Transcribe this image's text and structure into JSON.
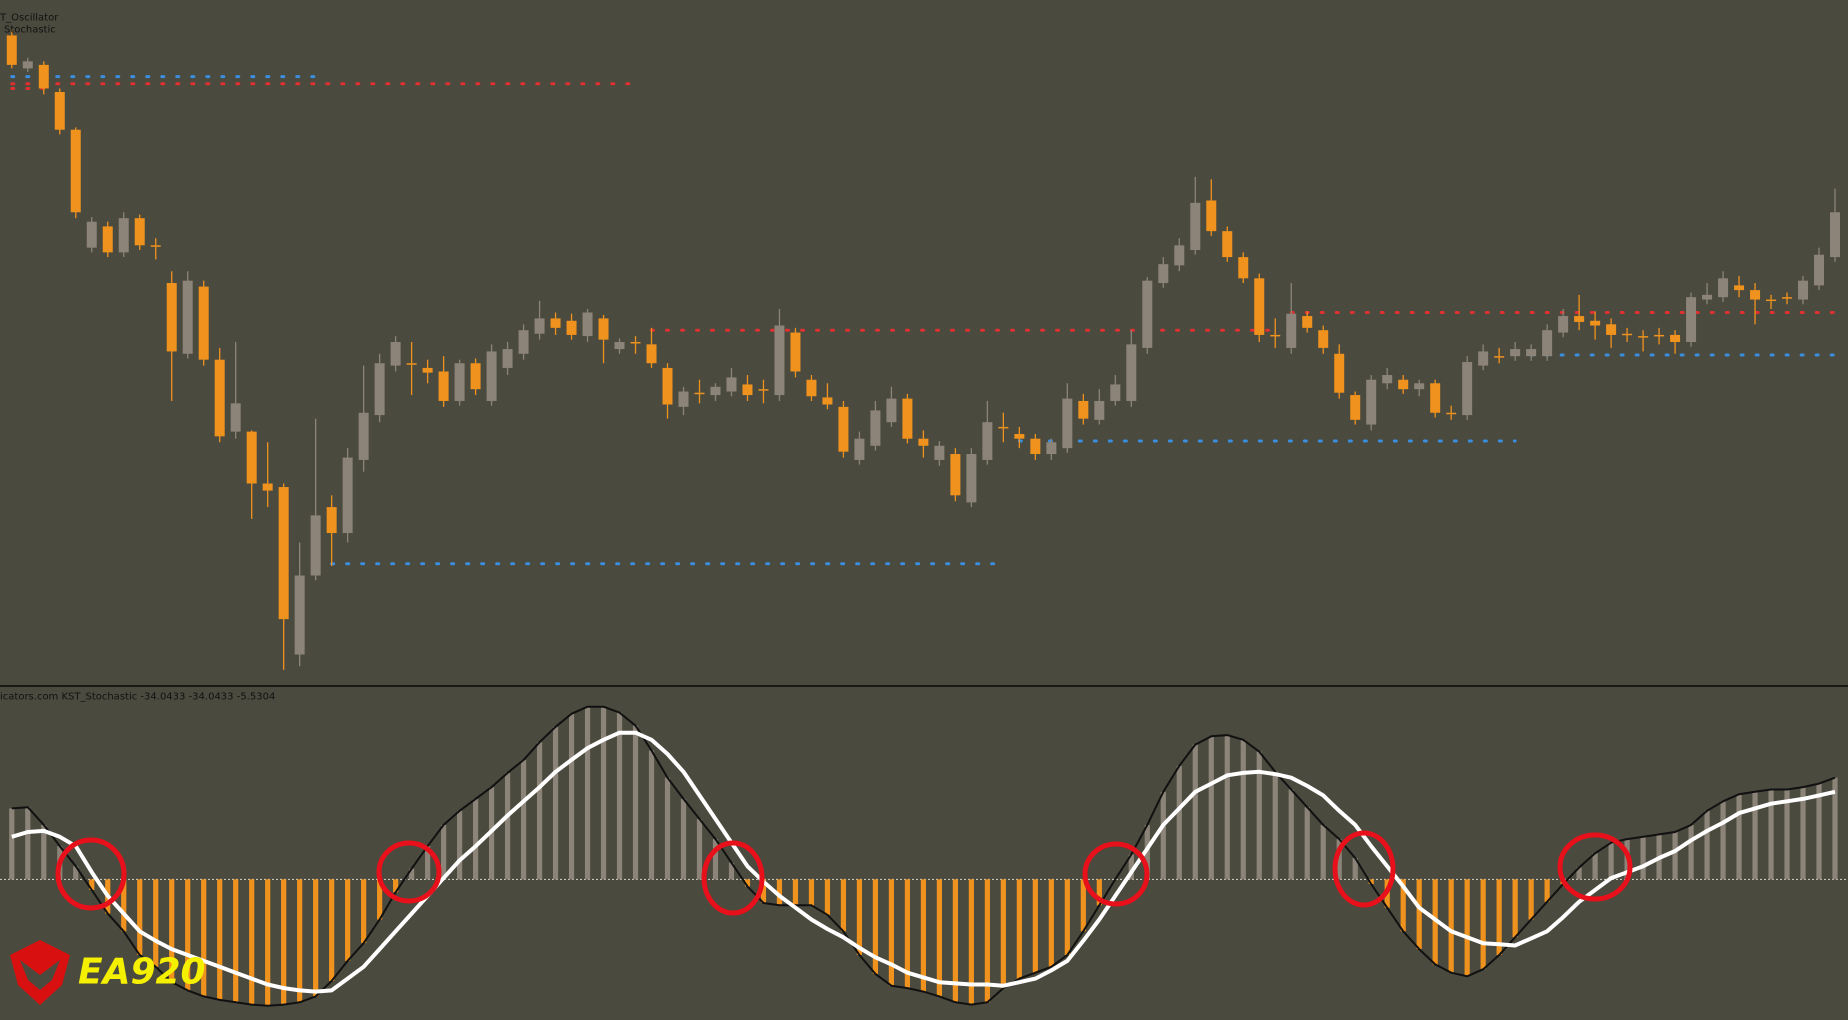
{
  "chart_data": [
    {
      "type": "candlestick",
      "labels": [
        "T_Oscillator",
        "Stochastic"
      ],
      "ylim": [
        0,
        580
      ],
      "up_color": "#8c8478",
      "down_color": "#f0921e",
      "open": [
        550,
        522,
        525,
        502,
        470,
        370,
        388,
        366,
        395,
        372,
        340,
        280,
        337,
        275,
        214,
        214,
        170,
        167,
        25,
        92,
        150,
        128,
        190,
        228,
        270,
        272,
        268,
        265,
        240,
        272,
        240,
        268,
        280,
        297,
        310,
        308,
        295,
        310,
        284,
        290,
        288,
        268,
        235,
        247,
        245,
        248,
        254,
        250,
        245,
        298,
        258,
        243,
        235,
        190,
        202,
        222,
        242,
        208,
        190,
        195,
        154,
        190,
        218,
        212,
        208,
        195,
        200,
        240,
        224,
        240,
        240,
        285,
        340,
        355,
        368,
        410,
        384,
        362,
        344,
        296,
        285,
        312,
        300,
        280,
        245,
        220,
        255,
        258,
        250,
        255,
        230,
        228,
        270,
        278,
        278,
        278,
        278,
        298,
        312,
        308,
        305,
        297,
        295,
        296,
        296,
        290,
        326,
        328,
        338,
        334,
        326,
        328,
        326,
        338,
        362
      ],
      "high": [
        555,
        531,
        528,
        505,
        472,
        396,
        392,
        400,
        398,
        378,
        350,
        350,
        342,
        285,
        290,
        215,
        205,
        170,
        120,
        225,
        160,
        200,
        270,
        280,
        295,
        290,
        275,
        278,
        275,
        276,
        288,
        290,
        305,
        325,
        315,
        314,
        318,
        313,
        293,
        295,
        302,
        272,
        252,
        258,
        255,
        268,
        262,
        258,
        318,
        302,
        262,
        255,
        240,
        214,
        240,
        252,
        246,
        215,
        206,
        200,
        200,
        240,
        230,
        218,
        212,
        208,
        255,
        246,
        250,
        262,
        300,
        345,
        362,
        378,
        430,
        428,
        388,
        366,
        348,
        310,
        340,
        316,
        304,
        288,
        248,
        262,
        268,
        262,
        258,
        258,
        236,
        278,
        288,
        285,
        290,
        288,
        305,
        318,
        330,
        316,
        310,
        302,
        300,
        302,
        300,
        332,
        340,
        350,
        346,
        340,
        330,
        332,
        346,
        370,
        420
      ],
      "low": [
        522,
        519,
        500,
        466,
        395,
        366,
        362,
        362,
        368,
        360,
        240,
        276,
        270,
        205,
        208,
        140,
        150,
        12,
        15,
        88,
        100,
        120,
        180,
        222,
        265,
        245,
        255,
        235,
        236,
        245,
        236,
        262,
        275,
        292,
        296,
        292,
        290,
        272,
        280,
        280,
        268,
        225,
        228,
        238,
        240,
        244,
        240,
        238,
        240,
        260,
        240,
        233,
        192,
        186,
        198,
        218,
        204,
        192,
        185,
        155,
        150,
        186,
        205,
        200,
        190,
        190,
        196,
        220,
        220,
        236,
        235,
        280,
        336,
        350,
        364,
        380,
        358,
        340,
        290,
        285,
        280,
        298,
        280,
        242,
        220,
        215,
        250,
        246,
        244,
        226,
        224,
        224,
        266,
        272,
        274,
        274,
        274,
        294,
        300,
        292,
        285,
        290,
        282,
        288,
        280,
        286,
        322,
        324,
        328,
        305,
        318,
        322,
        322,
        334,
        358
      ],
      "close": [
        525,
        528,
        505,
        470,
        400,
        392,
        366,
        395,
        372,
        371,
        282,
        342,
        275,
        210,
        238,
        170,
        164,
        55,
        92,
        143,
        128,
        192,
        230,
        272,
        290,
        271,
        264,
        240,
        272,
        250,
        282,
        284,
        300,
        310,
        302,
        296,
        315,
        292,
        290,
        289,
        272,
        237,
        248,
        246,
        252,
        260,
        245,
        249,
        304,
        265,
        244,
        237,
        197,
        208,
        232,
        242,
        208,
        202,
        202,
        160,
        195,
        222,
        217,
        208,
        195,
        205,
        242,
        225,
        240,
        254,
        288,
        342,
        356,
        372,
        408,
        384,
        362,
        344,
        296,
        295,
        314,
        302,
        285,
        247,
        224,
        258,
        262,
        250,
        255,
        230,
        229,
        273,
        282,
        277,
        284,
        284,
        300,
        312,
        307,
        304,
        296,
        296,
        294,
        295,
        290,
        328,
        330,
        344,
        334,
        326,
        325,
        327,
        342,
        364,
        400
      ],
      "levels": [
        {
          "value": 515,
          "start": 0,
          "end": 19,
          "color": "#3a8ee0"
        },
        {
          "value": 509,
          "start": 0,
          "end": 39,
          "color": "#e03030"
        },
        {
          "value": 505,
          "start": 0,
          "end": 2,
          "color": "#e03030"
        },
        {
          "value": 300,
          "start": 40,
          "end": 79,
          "color": "#e03030"
        },
        {
          "value": 102,
          "start": 20,
          "end": 62,
          "color": "#3a8ee0"
        },
        {
          "value": 206,
          "start": 63,
          "end": 94,
          "color": "#3a8ee0"
        },
        {
          "value": 315,
          "start": 80,
          "end": 114,
          "color": "#e03030"
        },
        {
          "value": 279,
          "start": 95,
          "end": 114,
          "color": "#3a8ee0"
        }
      ]
    },
    {
      "type": "histogram",
      "title": "icators.com KST_Stochastic -34.0433 -34.0433 -5.5304",
      "ylim": [
        -119,
        161
      ],
      "up_color": "#8c8478",
      "down_color": "#f0921e",
      "line_color": "#111111",
      "values": [
        60,
        61,
        46,
        28,
        11,
        -9,
        -29,
        -44,
        -64,
        -74,
        -87,
        -94,
        -99,
        -102,
        -104,
        -106,
        -107,
        -106,
        -104,
        -99,
        -86,
        -69,
        -54,
        -34,
        -11,
        9,
        28,
        46,
        58,
        68,
        78,
        90,
        101,
        116,
        129,
        140,
        146,
        146,
        141,
        130,
        109,
        86,
        68,
        51,
        34,
        14,
        -6,
        -20,
        -22,
        -22,
        -22,
        -30,
        -44,
        -64,
        -80,
        -90,
        -92,
        -95,
        -99,
        -104,
        -106,
        -104,
        -92,
        -84,
        -79,
        -74,
        -64,
        -44,
        -22,
        0,
        21,
        46,
        74,
        96,
        114,
        121,
        122,
        118,
        108,
        91,
        76,
        61,
        46,
        34,
        18,
        -4,
        -24,
        -44,
        -59,
        -72,
        -79,
        -82,
        -76,
        -64,
        -49,
        -34,
        -19,
        -4,
        10,
        22,
        31,
        34,
        36,
        38,
        40,
        46,
        58,
        66,
        72,
        74,
        76,
        76,
        78,
        81,
        86
      ],
      "signal": {
        "color": "#ffffff",
        "values": [
          36,
          40,
          41,
          36,
          28,
          6,
          -14,
          -29,
          -44,
          -52,
          -59,
          -64,
          -69,
          -74,
          -79,
          -84,
          -89,
          -92,
          -94,
          -95,
          -94,
          -84,
          -74,
          -59,
          -44,
          -29,
          -14,
          1,
          16,
          28,
          41,
          54,
          66,
          78,
          91,
          101,
          111,
          118,
          124,
          124,
          118,
          106,
          91,
          71,
          51,
          31,
          11,
          -2,
          -14,
          -24,
          -34,
          -42,
          -49,
          -58,
          -66,
          -72,
          -79,
          -83,
          -87,
          -88,
          -89,
          -89,
          -90,
          -87,
          -84,
          -77,
          -69,
          -52,
          -34,
          -14,
          6,
          26,
          46,
          60,
          74,
          81,
          88,
          90,
          91,
          89,
          86,
          79,
          71,
          58,
          46,
          28,
          11,
          -6,
          -24,
          -34,
          -44,
          -49,
          -54,
          -55,
          -56,
          -50,
          -44,
          -32,
          -19,
          -9,
          1,
          6,
          11,
          18,
          24,
          33,
          41,
          48,
          56,
          60,
          64,
          66,
          68,
          71,
          74
        ]
      }
    }
  ],
  "logo": "EA920"
}
